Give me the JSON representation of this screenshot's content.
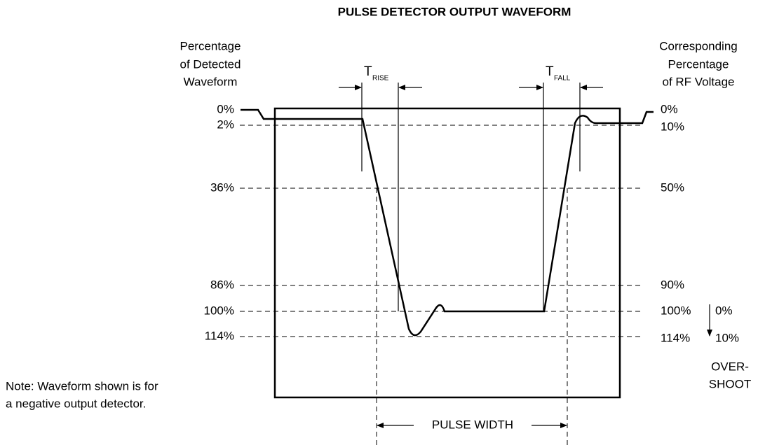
{
  "title": "PULSE DETECTOR OUTPUT WAVEFORM",
  "left_header": [
    "Percentage",
    "of Detected",
    "Waveform"
  ],
  "right_header": [
    "Corresponding",
    "Percentage",
    "of RF Voltage"
  ],
  "left_levels": [
    "0%",
    "2%",
    "36%",
    "86%",
    "100%",
    "114%"
  ],
  "right_levels": [
    "0%",
    "10%",
    "50%",
    "90%",
    "100%",
    "114%"
  ],
  "overshoot": {
    "levels": [
      "0%",
      "10%"
    ],
    "label": [
      "OVER-",
      "SHOOT"
    ]
  },
  "t_rise": {
    "main": "T",
    "sub": "RISE"
  },
  "t_fall": {
    "main": "T",
    "sub": "FALL"
  },
  "pulse_width": "PULSE WIDTH",
  "note": [
    "Note: Waveform shown is for",
    "a negative output detector."
  ]
}
